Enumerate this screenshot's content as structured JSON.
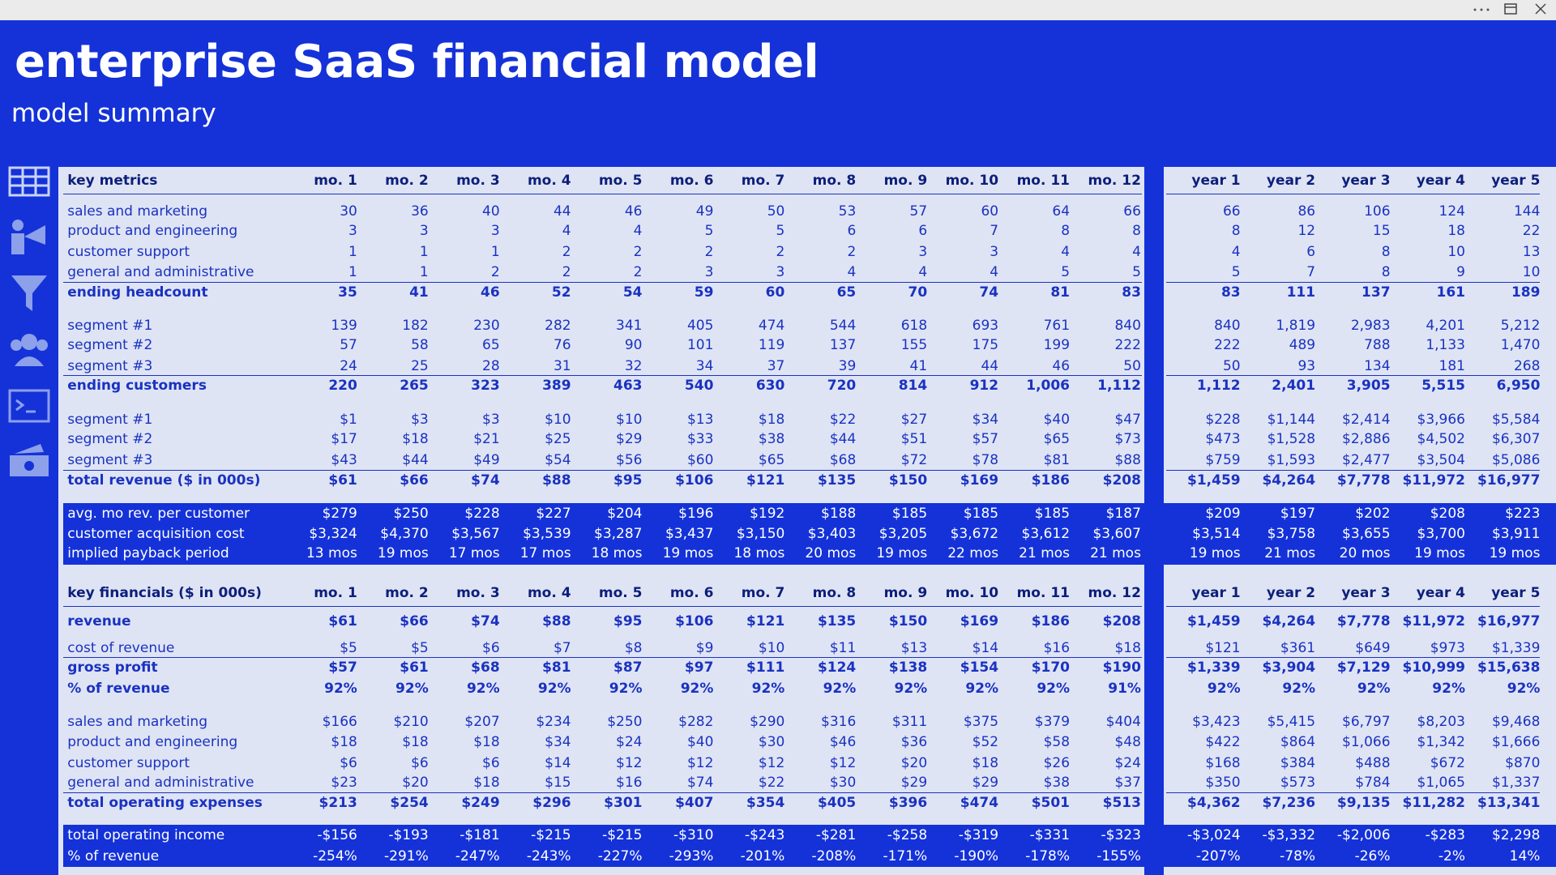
{
  "header": {
    "title": "enterprise SaaS financial model",
    "subtitle": "model summary"
  },
  "tables": [
    {
      "title": "key metrics",
      "months": [
        "mo. 1",
        "mo. 2",
        "mo. 3",
        "mo. 4",
        "mo. 5",
        "mo. 6",
        "mo. 7",
        "mo. 8",
        "mo. 9",
        "mo. 10",
        "mo. 11",
        "mo. 12"
      ],
      "years": [
        "year 1",
        "year 2",
        "year 3",
        "year 4",
        "year 5"
      ],
      "groups": [
        {
          "rows": [
            {
              "label": "sales and marketing",
              "months": [
                "30",
                "36",
                "40",
                "44",
                "46",
                "49",
                "50",
                "53",
                "57",
                "60",
                "64",
                "66"
              ],
              "years": [
                "66",
                "86",
                "106",
                "124",
                "144"
              ]
            },
            {
              "label": "product and engineering",
              "months": [
                "3",
                "3",
                "3",
                "4",
                "4",
                "5",
                "5",
                "6",
                "6",
                "7",
                "8",
                "8"
              ],
              "years": [
                "8",
                "12",
                "15",
                "18",
                "22"
              ]
            },
            {
              "label": "customer support",
              "months": [
                "1",
                "1",
                "1",
                "2",
                "2",
                "2",
                "2",
                "2",
                "3",
                "3",
                "4",
                "4"
              ],
              "years": [
                "4",
                "6",
                "8",
                "10",
                "13"
              ]
            },
            {
              "label": "general and administrative",
              "months": [
                "1",
                "1",
                "2",
                "2",
                "2",
                "3",
                "3",
                "4",
                "4",
                "4",
                "5",
                "5"
              ],
              "years": [
                "5",
                "7",
                "8",
                "9",
                "10"
              ]
            },
            {
              "label": "ending headcount",
              "months": [
                "35",
                "41",
                "46",
                "52",
                "54",
                "59",
                "60",
                "65",
                "70",
                "74",
                "81",
                "83"
              ],
              "years": [
                "83",
                "111",
                "137",
                "161",
                "189"
              ]
            }
          ]
        },
        {
          "rows": [
            {
              "label": "segment #1",
              "months": [
                "139",
                "182",
                "230",
                "282",
                "341",
                "405",
                "474",
                "544",
                "618",
                "693",
                "761",
                "840"
              ],
              "years": [
                "840",
                "1,819",
                "2,983",
                "4,201",
                "5,212"
              ]
            },
            {
              "label": "segment #2",
              "months": [
                "57",
                "58",
                "65",
                "76",
                "90",
                "101",
                "119",
                "137",
                "155",
                "175",
                "199",
                "222"
              ],
              "years": [
                "222",
                "489",
                "788",
                "1,133",
                "1,470"
              ]
            },
            {
              "label": "segment #3",
              "months": [
                "24",
                "25",
                "28",
                "31",
                "32",
                "34",
                "37",
                "39",
                "41",
                "44",
                "46",
                "50"
              ],
              "years": [
                "50",
                "93",
                "134",
                "181",
                "268"
              ]
            },
            {
              "label": "ending customers",
              "months": [
                "220",
                "265",
                "323",
                "389",
                "463",
                "540",
                "630",
                "720",
                "814",
                "912",
                "1,006",
                "1,112"
              ],
              "years": [
                "1,112",
                "2,401",
                "3,905",
                "5,515",
                "6,950"
              ]
            }
          ]
        },
        {
          "rows": [
            {
              "label": "segment #1",
              "months": [
                "$1",
                "$3",
                "$3",
                "$10",
                "$10",
                "$13",
                "$18",
                "$22",
                "$27",
                "$34",
                "$40",
                "$47"
              ],
              "years": [
                "$228",
                "$1,144",
                "$2,414",
                "$3,966",
                "$5,584"
              ]
            },
            {
              "label": "segment #2",
              "months": [
                "$17",
                "$18",
                "$21",
                "$25",
                "$29",
                "$33",
                "$38",
                "$44",
                "$51",
                "$57",
                "$65",
                "$73"
              ],
              "years": [
                "$473",
                "$1,528",
                "$2,886",
                "$4,502",
                "$6,307"
              ]
            },
            {
              "label": "segment #3",
              "months": [
                "$43",
                "$44",
                "$49",
                "$54",
                "$56",
                "$60",
                "$65",
                "$68",
                "$72",
                "$78",
                "$81",
                "$88"
              ],
              "years": [
                "$759",
                "$1,593",
                "$2,477",
                "$3,504",
                "$5,086"
              ]
            },
            {
              "label": "total revenue ($ in 000s)",
              "months": [
                "$61",
                "$66",
                "$74",
                "$88",
                "$95",
                "$106",
                "$121",
                "$135",
                "$150",
                "$169",
                "$186",
                "$208"
              ],
              "years": [
                "$1,459",
                "$4,264",
                "$7,778",
                "$11,972",
                "$16,977"
              ]
            }
          ]
        },
        {
          "rows": [
            {
              "label": "avg. mo rev. per customer",
              "months": [
                "$279",
                "$250",
                "$228",
                "$227",
                "$204",
                "$196",
                "$192",
                "$188",
                "$185",
                "$185",
                "$185",
                "$187"
              ],
              "years": [
                "$209",
                "$197",
                "$202",
                "$208",
                "$223"
              ]
            },
            {
              "label": "customer acquisition cost",
              "months": [
                "$3,324",
                "$4,370",
                "$3,567",
                "$3,539",
                "$3,287",
                "$3,437",
                "$3,150",
                "$3,403",
                "$3,205",
                "$3,672",
                "$3,612",
                "$3,607"
              ],
              "years": [
                "$3,514",
                "$3,758",
                "$3,655",
                "$3,700",
                "$3,911"
              ]
            },
            {
              "label": "implied payback period",
              "months": [
                "13 mos",
                "19 mos",
                "17 mos",
                "17 mos",
                "18 mos",
                "19 mos",
                "18 mos",
                "20 mos",
                "19 mos",
                "22 mos",
                "21 mos",
                "21 mos"
              ],
              "years": [
                "19 mos",
                "21 mos",
                "20 mos",
                "19 mos",
                "19 mos"
              ]
            }
          ]
        }
      ]
    },
    {
      "title": "key financials ($ in 000s)",
      "months": [
        "mo. 1",
        "mo. 2",
        "mo. 3",
        "mo. 4",
        "mo. 5",
        "mo. 6",
        "mo. 7",
        "mo. 8",
        "mo. 9",
        "mo. 10",
        "mo. 11",
        "mo. 12"
      ],
      "years": [
        "year 1",
        "year 2",
        "year 3",
        "year 4",
        "year 5"
      ],
      "groups": [
        {
          "rows": [
            {
              "label": "revenue",
              "months": [
                "$61",
                "$66",
                "$74",
                "$88",
                "$95",
                "$106",
                "$121",
                "$135",
                "$150",
                "$169",
                "$186",
                "$208"
              ],
              "years": [
                "$1,459",
                "$4,264",
                "$7,778",
                "$11,972",
                "$16,977"
              ]
            }
          ]
        },
        {
          "rows": [
            {
              "label": "cost of revenue",
              "months": [
                "$5",
                "$5",
                "$6",
                "$7",
                "$8",
                "$9",
                "$10",
                "$11",
                "$13",
                "$14",
                "$16",
                "$18"
              ],
              "years": [
                "$121",
                "$361",
                "$649",
                "$973",
                "$1,339"
              ]
            },
            {
              "label": "gross profit",
              "months": [
                "$57",
                "$61",
                "$68",
                "$81",
                "$87",
                "$97",
                "$111",
                "$124",
                "$138",
                "$154",
                "$170",
                "$190"
              ],
              "years": [
                "$1,339",
                "$3,904",
                "$7,129",
                "$10,999",
                "$15,638"
              ]
            },
            {
              "label": "% of revenue",
              "months": [
                "92%",
                "92%",
                "92%",
                "92%",
                "92%",
                "92%",
                "92%",
                "92%",
                "92%",
                "92%",
                "92%",
                "91%"
              ],
              "years": [
                "92%",
                "92%",
                "92%",
                "92%",
                "92%"
              ]
            }
          ]
        },
        {
          "rows": [
            {
              "label": "sales and marketing",
              "months": [
                "$166",
                "$210",
                "$207",
                "$234",
                "$250",
                "$282",
                "$290",
                "$316",
                "$311",
                "$375",
                "$379",
                "$404"
              ],
              "years": [
                "$3,423",
                "$5,415",
                "$6,797",
                "$8,203",
                "$9,468"
              ]
            },
            {
              "label": "product and engineering",
              "months": [
                "$18",
                "$18",
                "$18",
                "$34",
                "$24",
                "$40",
                "$30",
                "$46",
                "$36",
                "$52",
                "$58",
                "$48"
              ],
              "years": [
                "$422",
                "$864",
                "$1,066",
                "$1,342",
                "$1,666"
              ]
            },
            {
              "label": "customer support",
              "months": [
                "$6",
                "$6",
                "$6",
                "$14",
                "$12",
                "$12",
                "$12",
                "$12",
                "$20",
                "$18",
                "$26",
                "$24"
              ],
              "years": [
                "$168",
                "$384",
                "$488",
                "$672",
                "$870"
              ]
            },
            {
              "label": "general and administrative",
              "months": [
                "$23",
                "$20",
                "$18",
                "$15",
                "$16",
                "$74",
                "$22",
                "$30",
                "$29",
                "$29",
                "$38",
                "$37"
              ],
              "years": [
                "$350",
                "$573",
                "$784",
                "$1,065",
                "$1,337"
              ]
            },
            {
              "label": "total operating expenses",
              "months": [
                "$213",
                "$254",
                "$249",
                "$296",
                "$301",
                "$407",
                "$354",
                "$405",
                "$396",
                "$474",
                "$501",
                "$513"
              ],
              "years": [
                "$4,362",
                "$7,236",
                "$9,135",
                "$11,282",
                "$13,341"
              ]
            }
          ]
        },
        {
          "rows": [
            {
              "label": "total operating income",
              "months": [
                "-$156",
                "-$193",
                "-$181",
                "-$215",
                "-$215",
                "-$310",
                "-$243",
                "-$281",
                "-$258",
                "-$319",
                "-$331",
                "-$323"
              ],
              "years": [
                "-$3,024",
                "-$3,332",
                "-$2,006",
                "-$283",
                "$2,298"
              ]
            },
            {
              "label": "% of revenue",
              "months": [
                "-254%",
                "-291%",
                "-247%",
                "-243%",
                "-227%",
                "-293%",
                "-201%",
                "-208%",
                "-171%",
                "-190%",
                "-178%",
                "-155%"
              ],
              "years": [
                "-207%",
                "-78%",
                "-26%",
                "-2%",
                "14%"
              ]
            }
          ]
        }
      ]
    }
  ]
}
